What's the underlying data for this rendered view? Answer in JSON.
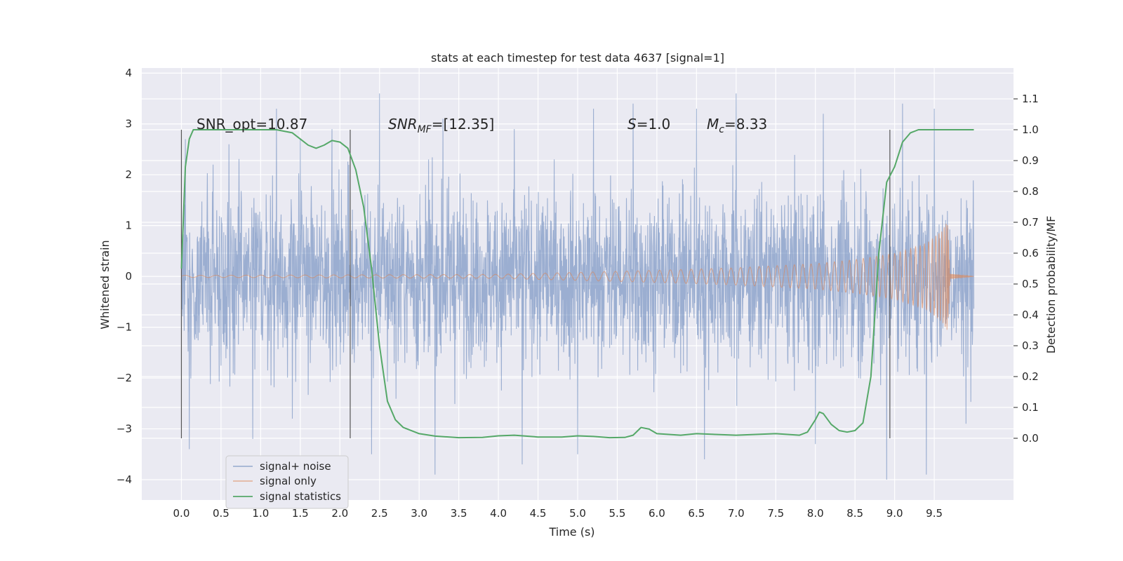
{
  "chart_data": {
    "type": "line",
    "title": "stats at each timestep for test data 4637 [signal=1]",
    "xlabel": "Time (s)",
    "ylabel": "Whitened strain",
    "y2label": "Detection probability/MF",
    "xlim": [
      -0.5,
      10.5
    ],
    "ylim": [
      -4.4,
      4.1
    ],
    "y2lim": [
      -0.2,
      1.2
    ],
    "x_ticks": [
      "0.0",
      "0.5",
      "1.0",
      "1.5",
      "2.0",
      "2.5",
      "3.0",
      "3.5",
      "4.0",
      "4.5",
      "5.0",
      "5.5",
      "6.0",
      "6.5",
      "7.0",
      "7.5",
      "8.0",
      "8.5",
      "9.0",
      "9.5"
    ],
    "y_ticks": [
      "4",
      "3",
      "2",
      "1",
      "0",
      "−1",
      "−2",
      "−3",
      "−4"
    ],
    "y2_ticks": [
      "1.1",
      "1.0",
      "0.9",
      "0.8",
      "0.7",
      "0.6",
      "0.5",
      "0.4",
      "0.3",
      "0.2",
      "0.1",
      "0.0"
    ],
    "grid": true,
    "legend_position": "lower-left",
    "colors": {
      "background": "#eaeaf2",
      "grid": "#ffffff",
      "noise": "#4c72b0",
      "signal": "#dd8452",
      "stats": "#55a868",
      "vline": "#555555"
    },
    "series": [
      {
        "name": "signal+ noise",
        "axis": "left",
        "envelope": "dense noisy strain, typical band ±2.2, peaks to ±3.6, extreme min -4.0 near t=8.9",
        "x_range": [
          0.0,
          10.0
        ],
        "peaks_high": [
          [
            0.05,
            2.7
          ],
          [
            0.4,
            2.2
          ],
          [
            0.6,
            2.6
          ],
          [
            0.9,
            2.8
          ],
          [
            1.2,
            3.3
          ],
          [
            1.5,
            2.7
          ],
          [
            1.9,
            2.9
          ],
          [
            2.5,
            3.6
          ],
          [
            3.3,
            3.1
          ],
          [
            4.2,
            2.9
          ],
          [
            5.2,
            3.3
          ],
          [
            5.7,
            3.4
          ],
          [
            6.5,
            3.3
          ],
          [
            7.0,
            3.6
          ],
          [
            8.1,
            3.2
          ],
          [
            8.9,
            3.5
          ],
          [
            9.1,
            3.4
          ],
          [
            9.5,
            3.3
          ],
          [
            9.9,
            2.9
          ]
        ],
        "peaks_low": [
          [
            0.1,
            -3.4
          ],
          [
            0.9,
            -3.2
          ],
          [
            1.4,
            -2.8
          ],
          [
            2.4,
            -3.5
          ],
          [
            3.2,
            -3.9
          ],
          [
            4.3,
            -3.7
          ],
          [
            5.0,
            -3.5
          ],
          [
            6.6,
            -3.6
          ],
          [
            8.0,
            -3.3
          ],
          [
            8.9,
            -4.0
          ],
          [
            9.4,
            -3.9
          ],
          [
            9.9,
            -2.9
          ]
        ]
      },
      {
        "name": "signal only",
        "axis": "left",
        "envelope": "chirp starting near zero, growing amplitude to ~1.1 at merger t≈9.67, then ring-down to 0",
        "amplitude_points": [
          [
            0.0,
            0.02
          ],
          [
            4.0,
            0.04
          ],
          [
            5.0,
            0.08
          ],
          [
            6.0,
            0.12
          ],
          [
            7.0,
            0.17
          ],
          [
            8.0,
            0.25
          ],
          [
            8.5,
            0.33
          ],
          [
            9.0,
            0.45
          ],
          [
            9.4,
            0.65
          ],
          [
            9.6,
            0.9
          ],
          [
            9.67,
            1.1
          ],
          [
            9.7,
            0.05
          ],
          [
            10.0,
            0.0
          ]
        ]
      },
      {
        "name": "signal statistics",
        "axis": "right",
        "x": [
          0.0,
          0.05,
          0.1,
          0.15,
          0.3,
          0.5,
          0.8,
          1.0,
          1.2,
          1.4,
          1.5,
          1.6,
          1.7,
          1.8,
          1.9,
          2.0,
          2.1,
          2.2,
          2.3,
          2.4,
          2.5,
          2.6,
          2.7,
          2.8,
          3.0,
          3.2,
          3.5,
          3.8,
          4.0,
          4.2,
          4.5,
          4.8,
          5.0,
          5.2,
          5.4,
          5.6,
          5.7,
          5.8,
          5.9,
          6.0,
          6.3,
          6.5,
          7.0,
          7.5,
          7.8,
          7.9,
          8.0,
          8.05,
          8.1,
          8.2,
          8.3,
          8.4,
          8.5,
          8.6,
          8.7,
          8.8,
          8.9,
          9.0,
          9.1,
          9.2,
          9.3,
          9.5,
          10.0
        ],
        "y": [
          0.55,
          0.88,
          0.97,
          1.0,
          1.0,
          1.0,
          1.0,
          1.0,
          1.0,
          0.99,
          0.97,
          0.95,
          0.94,
          0.95,
          0.965,
          0.96,
          0.94,
          0.87,
          0.75,
          0.55,
          0.3,
          0.12,
          0.06,
          0.035,
          0.015,
          0.007,
          0.002,
          0.003,
          0.008,
          0.01,
          0.004,
          0.004,
          0.008,
          0.006,
          0.002,
          0.003,
          0.01,
          0.035,
          0.03,
          0.015,
          0.01,
          0.015,
          0.01,
          0.015,
          0.01,
          0.02,
          0.06,
          0.085,
          0.08,
          0.045,
          0.025,
          0.02,
          0.025,
          0.05,
          0.2,
          0.6,
          0.83,
          0.88,
          0.96,
          0.99,
          1.0,
          1.0,
          1.0
        ]
      }
    ],
    "vlines": [
      0.0,
      2.13,
      8.94
    ],
    "annotations": [
      {
        "id": "snr_opt",
        "text": "SNR_opt=10.87"
      },
      {
        "id": "snr_mf",
        "text": "SNR_MF=[12.35]",
        "main": "SNR",
        "sub": "MF",
        "rest": "=[12.35]"
      },
      {
        "id": "s",
        "text": "S=1.0",
        "main": "S",
        "rest": "=1.0"
      },
      {
        "id": "mc",
        "text": "M_c=8.33",
        "main": "M",
        "sub": "c",
        "rest": "=8.33"
      }
    ]
  }
}
